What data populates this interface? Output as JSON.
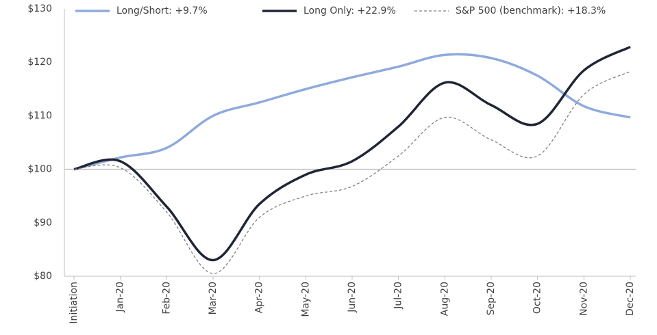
{
  "chart_data": {
    "type": "line",
    "categories": [
      "Initiation",
      "Jan-20",
      "Feb-20",
      "Mar-20",
      "Apr-20",
      "May-20",
      "Jun-20",
      "Jul-20",
      "Aug-20",
      "Sep-20",
      "Oct-20",
      "Nov-20",
      "Dec-20"
    ],
    "series": [
      {
        "name": "Long/Short: +9.7%",
        "color": "#8faadc",
        "values": [
          100,
          102.2,
          104,
          110,
          112.5,
          115,
          117.2,
          119.2,
          121.4,
          120.8,
          117.5,
          111.8,
          109.7
        ]
      },
      {
        "name": "Long Only: +22.9%",
        "color": "#1f2535",
        "values": [
          100,
          101.5,
          93,
          83,
          93.5,
          99,
          101.5,
          108,
          116.2,
          112,
          108.5,
          118.5,
          122.9
        ]
      },
      {
        "name": "S&P 500 (benchmark): +18.3%",
        "color": "#808080",
        "dashed": true,
        "values": [
          100,
          100.3,
          92,
          80.5,
          91,
          95,
          96.8,
          102.5,
          109.7,
          105.5,
          102.5,
          114,
          118.3
        ]
      }
    ],
    "ylim": [
      80,
      130
    ],
    "yticks": [
      {
        "value": 80,
        "label": "$80"
      },
      {
        "value": 90,
        "label": "$90"
      },
      {
        "value": 100,
        "label": "$100"
      },
      {
        "value": 110,
        "label": "$110"
      },
      {
        "value": 120,
        "label": "$120"
      },
      {
        "value": 130,
        "label": "$130"
      }
    ],
    "legend": "top"
  }
}
